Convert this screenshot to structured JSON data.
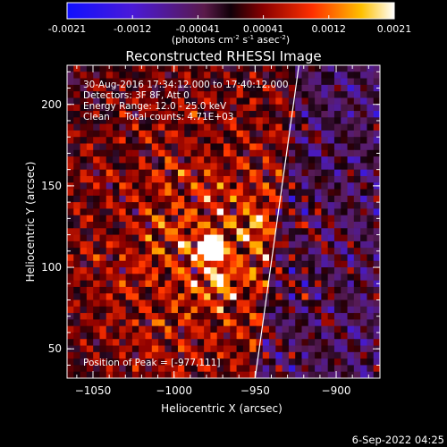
{
  "chart_data": {
    "type": "heatmap",
    "title": "Reconstructed RHESSI Image",
    "xlabel": "Heliocentric X (arcsec)",
    "ylabel": "Heliocentric Y (arcsec)",
    "xlim": [
      -1066,
      -873
    ],
    "ylim": [
      32,
      224
    ],
    "x_ticks": [
      -1050,
      -1000,
      -950,
      -900
    ],
    "y_ticks": [
      50,
      100,
      150,
      200
    ],
    "colorbar": {
      "ticks": [
        "-0.0021",
        "-0.0012",
        "-0.00041",
        "0.00041",
        "0.0012",
        "0.0021"
      ],
      "range": [
        -0.0021,
        0.0021
      ],
      "unit_base": "(photons cm",
      "unit_exp1": "-2",
      "unit_s": " s",
      "unit_exp2": "-1",
      "unit_asec": " asec",
      "unit_exp3": "-2",
      "unit_close": ")"
    },
    "annotations": [
      "30-Aug-2016 17:34:12.000 to 17:40:12.000",
      "Detectors: 3F 8F, Att 0",
      "Energy Range: 12.0 - 25.0 keV",
      "Clean     Total counts: 4.71E+03"
    ],
    "peak_label": "Position of Peak = [-977,111]",
    "peak": [
      -977,
      111
    ],
    "limb_line": [
      [
        -950,
        32
      ],
      [
        -923,
        224
      ]
    ]
  },
  "footer_timestamp": "6-Sep-2022 04:25"
}
